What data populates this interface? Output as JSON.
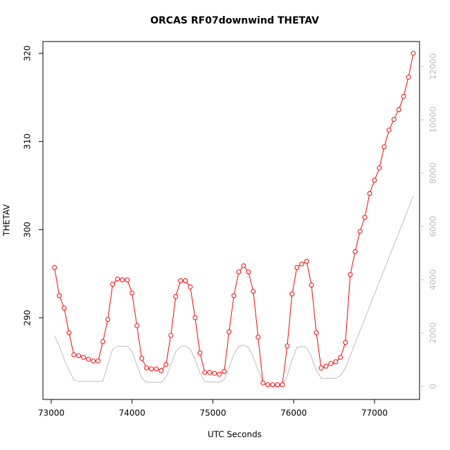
{
  "chart_data": {
    "type": "line",
    "title": "ORCAS RF07downwind THETAV",
    "x_label": "UTC Seconds",
    "y_label": "THETAV",
    "x": [
      73040,
      73100,
      73160,
      73220,
      73280,
      73340,
      73400,
      73460,
      73520,
      73580,
      73640,
      73700,
      73760,
      73820,
      73880,
      73940,
      74000,
      74060,
      74120,
      74180,
      74240,
      74300,
      74360,
      74420,
      74480,
      74540,
      74600,
      74660,
      74720,
      74780,
      74840,
      74900,
      74960,
      75020,
      75080,
      75140,
      75200,
      75260,
      75320,
      75380,
      75440,
      75500,
      75560,
      75620,
      75680,
      75740,
      75800,
      75860,
      75920,
      75980,
      76040,
      76100,
      76160,
      76220,
      76280,
      76340,
      76400,
      76460,
      76520,
      76580,
      76640,
      76700,
      76760,
      76820,
      76880,
      76940,
      77000,
      77060,
      77120,
      77180,
      77240,
      77300,
      77360,
      77420,
      77480
    ],
    "series": [
      {
        "color": "#ff0000",
        "values": [
          295.7,
          292.5,
          291.1,
          288.3,
          285.8,
          285.7,
          285.5,
          285.3,
          285.1,
          285.1,
          287.3,
          289.8,
          293.8,
          294.4,
          294.3,
          294.3,
          292.8,
          289.1,
          285.4,
          284.3,
          284.2,
          284.2,
          284.0,
          284.7,
          288.0,
          292.4,
          294.2,
          294.2,
          293.5,
          290.0,
          286.0,
          283.8,
          283.8,
          283.7,
          283.6,
          283.9,
          288.4,
          292.5,
          295.2,
          295.9,
          295.2,
          293.0,
          287.8,
          282.6,
          282.4,
          282.4,
          282.4,
          282.4,
          286.8,
          292.7,
          295.7,
          296.1,
          296.4,
          293.7,
          288.3,
          284.3,
          284.5,
          284.8,
          285.0,
          285.5,
          287.2,
          294.9,
          297.5,
          299.8,
          301.4,
          304.1,
          305.6,
          307.0,
          309.4,
          311.3,
          312.5,
          313.6,
          315.1,
          317.3,
          320.0
        ]
      },
      {
        "color": "#bebebe",
        "axis": "y2",
        "values": [
          1900,
          1500,
          1000,
          600,
          250,
          180,
          180,
          180,
          180,
          180,
          200,
          800,
          1400,
          1500,
          1500,
          1500,
          1300,
          800,
          300,
          150,
          150,
          150,
          150,
          350,
          800,
          1300,
          1500,
          1500,
          1400,
          1000,
          500,
          180,
          160,
          160,
          160,
          250,
          700,
          1200,
          1500,
          1550,
          1450,
          1100,
          600,
          150,
          0,
          0,
          0,
          0,
          400,
          1000,
          1450,
          1500,
          1450,
          1100,
          600,
          300,
          300,
          300,
          300,
          400,
          700,
          1160,
          1620,
          2080,
          2540,
          3000,
          3460,
          3920,
          4380,
          4840,
          5300,
          5760,
          6220,
          6680,
          7140
        ]
      }
    ],
    "xlim": [
      72897,
      77557
    ],
    "ylim": [
      280.73,
      321.34
    ],
    "y2lim": [
      -494,
      12935
    ],
    "xticks": [
      73000,
      74000,
      75000,
      76000,
      77000
    ],
    "yticks": [
      290,
      300,
      310,
      320
    ],
    "y2ticks": [
      0,
      2000,
      4000,
      6000,
      8000,
      10000,
      12000
    ]
  }
}
